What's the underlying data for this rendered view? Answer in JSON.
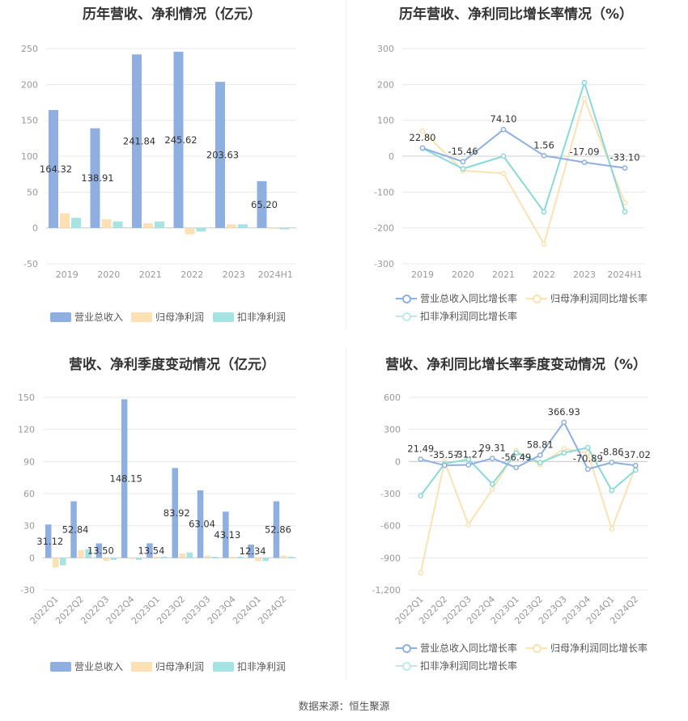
{
  "source_text": "数据来源：恒生聚源",
  "charts": [
    {
      "title": "历年营收、净利情况（亿元）",
      "legend": [
        "营业总收入",
        "归母净利润",
        "扣非净利润"
      ],
      "colors": [
        "#8eafe0",
        "#fbe1b3",
        "#a6e3e3"
      ],
      "chart_data": {
        "type": "bar",
        "categories": [
          "2019",
          "2020",
          "2021",
          "2022",
          "2023",
          "2024H1"
        ],
        "ylim": [
          -50,
          250
        ],
        "yticks": [
          -50,
          0,
          50,
          100,
          150,
          200,
          250
        ],
        "series": [
          {
            "name": "营业总收入",
            "values": [
              164.32,
              138.91,
              241.84,
              245.62,
              203.63,
              65.2
            ]
          },
          {
            "name": "归母净利润",
            "values": [
              20.5,
              12.0,
              6.5,
              -9.0,
              5.0,
              -1.0
            ]
          },
          {
            "name": "扣非净利润",
            "values": [
              14.0,
              9.0,
              9.0,
              -5.0,
              5.0,
              -2.0
            ]
          }
        ],
        "data_labels": [
          "164.32",
          "138.91",
          "241.84",
          "245.62",
          "203.63",
          "65.20"
        ]
      }
    },
    {
      "title": "历年营收、净利同比增长率情况（%）",
      "legend": [
        "营业总收入同比增长率",
        "归母净利润同比增长率",
        "扣非净利润同比增长率"
      ],
      "colors": [
        "#8eafe0",
        "#fbe1b3",
        "#8ad9d9"
      ],
      "chart_data": {
        "type": "line",
        "categories": [
          "2019",
          "2020",
          "2021",
          "2022",
          "2023",
          "2024H1"
        ],
        "ylim": [
          -300,
          300
        ],
        "yticks": [
          -300,
          -200,
          -100,
          0,
          100,
          200,
          300
        ],
        "series": [
          {
            "name": "营业总收入同比增长率",
            "values": [
              22.8,
              -15.46,
              74.1,
              1.56,
              -17.09,
              -33.1
            ]
          },
          {
            "name": "归母净利润同比增长率",
            "values": [
              70,
              -40,
              -48,
              -245,
              160,
              -130
            ]
          },
          {
            "name": "扣非净利润同比增长率",
            "values": [
              22,
              -35,
              0,
              -155,
              205,
              -155
            ]
          }
        ],
        "data_labels": [
          "22.80",
          "-15.46",
          "74.10",
          "1.56",
          "-17.09",
          "-33.10"
        ]
      }
    },
    {
      "title": "营收、净利季度变动情况（亿元）",
      "legend": [
        "营业总收入",
        "归母净利润",
        "扣非净利润"
      ],
      "colors": [
        "#8eafe0",
        "#fbe1b3",
        "#a6e3e3"
      ],
      "chart_data": {
        "type": "bar",
        "categories": [
          "2022Q1",
          "2022Q2",
          "2022Q3",
          "2022Q4",
          "2023Q1",
          "2023Q2",
          "2023Q3",
          "2023Q4",
          "2024Q1",
          "2024Q2"
        ],
        "ylim": [
          -30,
          150
        ],
        "yticks": [
          -30,
          0,
          30,
          60,
          90,
          120,
          150
        ],
        "series": [
          {
            "name": "营业总收入",
            "values": [
              31.12,
              52.84,
              13.5,
              148.15,
              13.54,
              83.92,
              63.04,
              43.13,
              12.34,
              52.86
            ]
          },
          {
            "name": "归母净利润",
            "values": [
              -9,
              7,
              -3,
              -1,
              1,
              4,
              2,
              1,
              -3,
              2
            ]
          },
          {
            "name": "扣非净利润",
            "values": [
              -7,
              8,
              -2,
              -2,
              1,
              5,
              1,
              1,
              -3,
              1
            ]
          }
        ],
        "data_labels": [
          "31.12",
          "52.84",
          "13.50",
          "148.15",
          "13.54",
          "83.92",
          "63.04",
          "43.13",
          "12.34",
          "52.86"
        ]
      }
    },
    {
      "title": "营收、净利同比增长率季度变动情况（%）",
      "legend": [
        "营业总收入同比增长率",
        "归母净利润同比增长率",
        "扣非净利润同比增长率"
      ],
      "colors": [
        "#8eafe0",
        "#fbe1b3",
        "#8ad9d9"
      ],
      "chart_data": {
        "type": "line",
        "categories": [
          "2022Q1",
          "2022Q2",
          "2022Q3",
          "2022Q4",
          "2023Q1",
          "2023Q2",
          "2023Q3",
          "2023Q4",
          "2024Q1",
          "2024Q2"
        ],
        "ylim": [
          -1200,
          600
        ],
        "yticks": [
          -1200,
          -900,
          -600,
          -300,
          0,
          300,
          600
        ],
        "series": [
          {
            "name": "营业总收入同比增长率",
            "values": [
              21.49,
              -35.57,
              -31.27,
              29.31,
              -56.49,
              58.81,
              366.93,
              -70.89,
              -8.86,
              -37.02
            ]
          },
          {
            "name": "归母净利润同比增长率",
            "values": [
              -1040,
              0,
              -590,
              -260,
              100,
              -30,
              120,
              80,
              -630,
              -50
            ]
          },
          {
            "name": "扣非净利润同比增长率",
            "values": [
              -320,
              -20,
              20,
              -210,
              80,
              -10,
              80,
              130,
              -270,
              -80
            ]
          }
        ],
        "data_labels": [
          "21.49",
          "-35.57",
          "-31.27",
          "29.31",
          "-56.49",
          "58.81",
          "366.93",
          "-70.89",
          "-8.86",
          "-37.02"
        ]
      }
    }
  ]
}
